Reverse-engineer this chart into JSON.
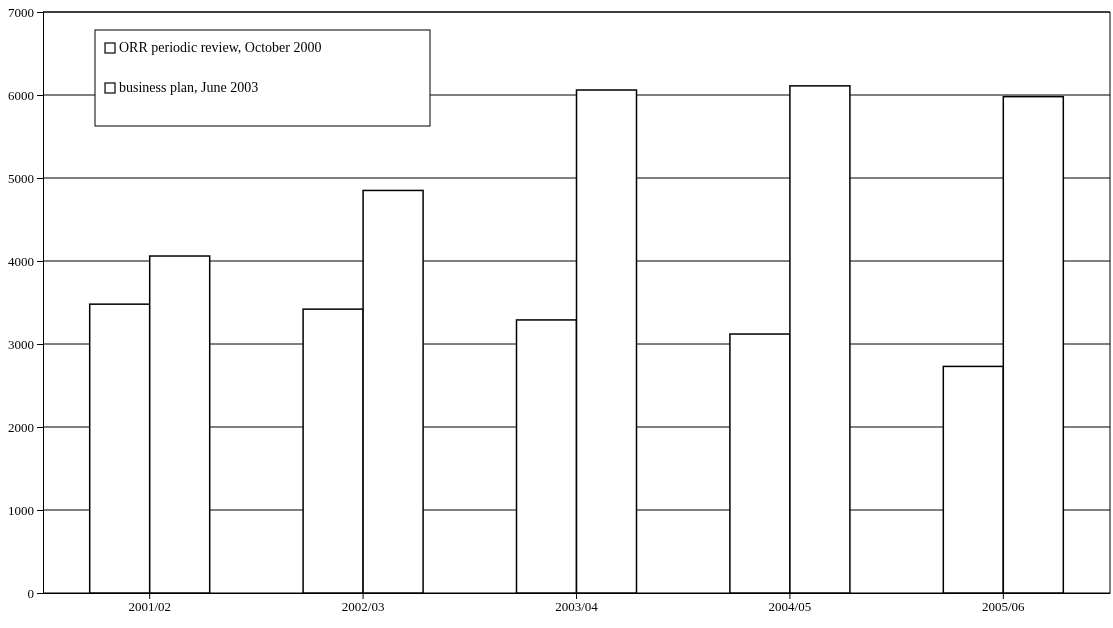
{
  "chart_data": {
    "type": "bar",
    "categories": [
      "2001/02",
      "2002/03",
      "2003/04",
      "2004/05",
      "2005/06"
    ],
    "series": [
      {
        "name": "ORR periodic review, October 2000",
        "color": "#ffffff",
        "values": [
          3480,
          3420,
          3290,
          3120,
          2730
        ]
      },
      {
        "name": "business plan, June 2003",
        "color": "#ffffff",
        "values": [
          4060,
          4850,
          6060,
          6110,
          5980
        ]
      }
    ],
    "ylim": [
      0,
      7000
    ],
    "yticks": [
      0,
      1000,
      2000,
      3000,
      4000,
      5000,
      6000,
      7000
    ],
    "grid": "y",
    "legend": "top left"
  }
}
